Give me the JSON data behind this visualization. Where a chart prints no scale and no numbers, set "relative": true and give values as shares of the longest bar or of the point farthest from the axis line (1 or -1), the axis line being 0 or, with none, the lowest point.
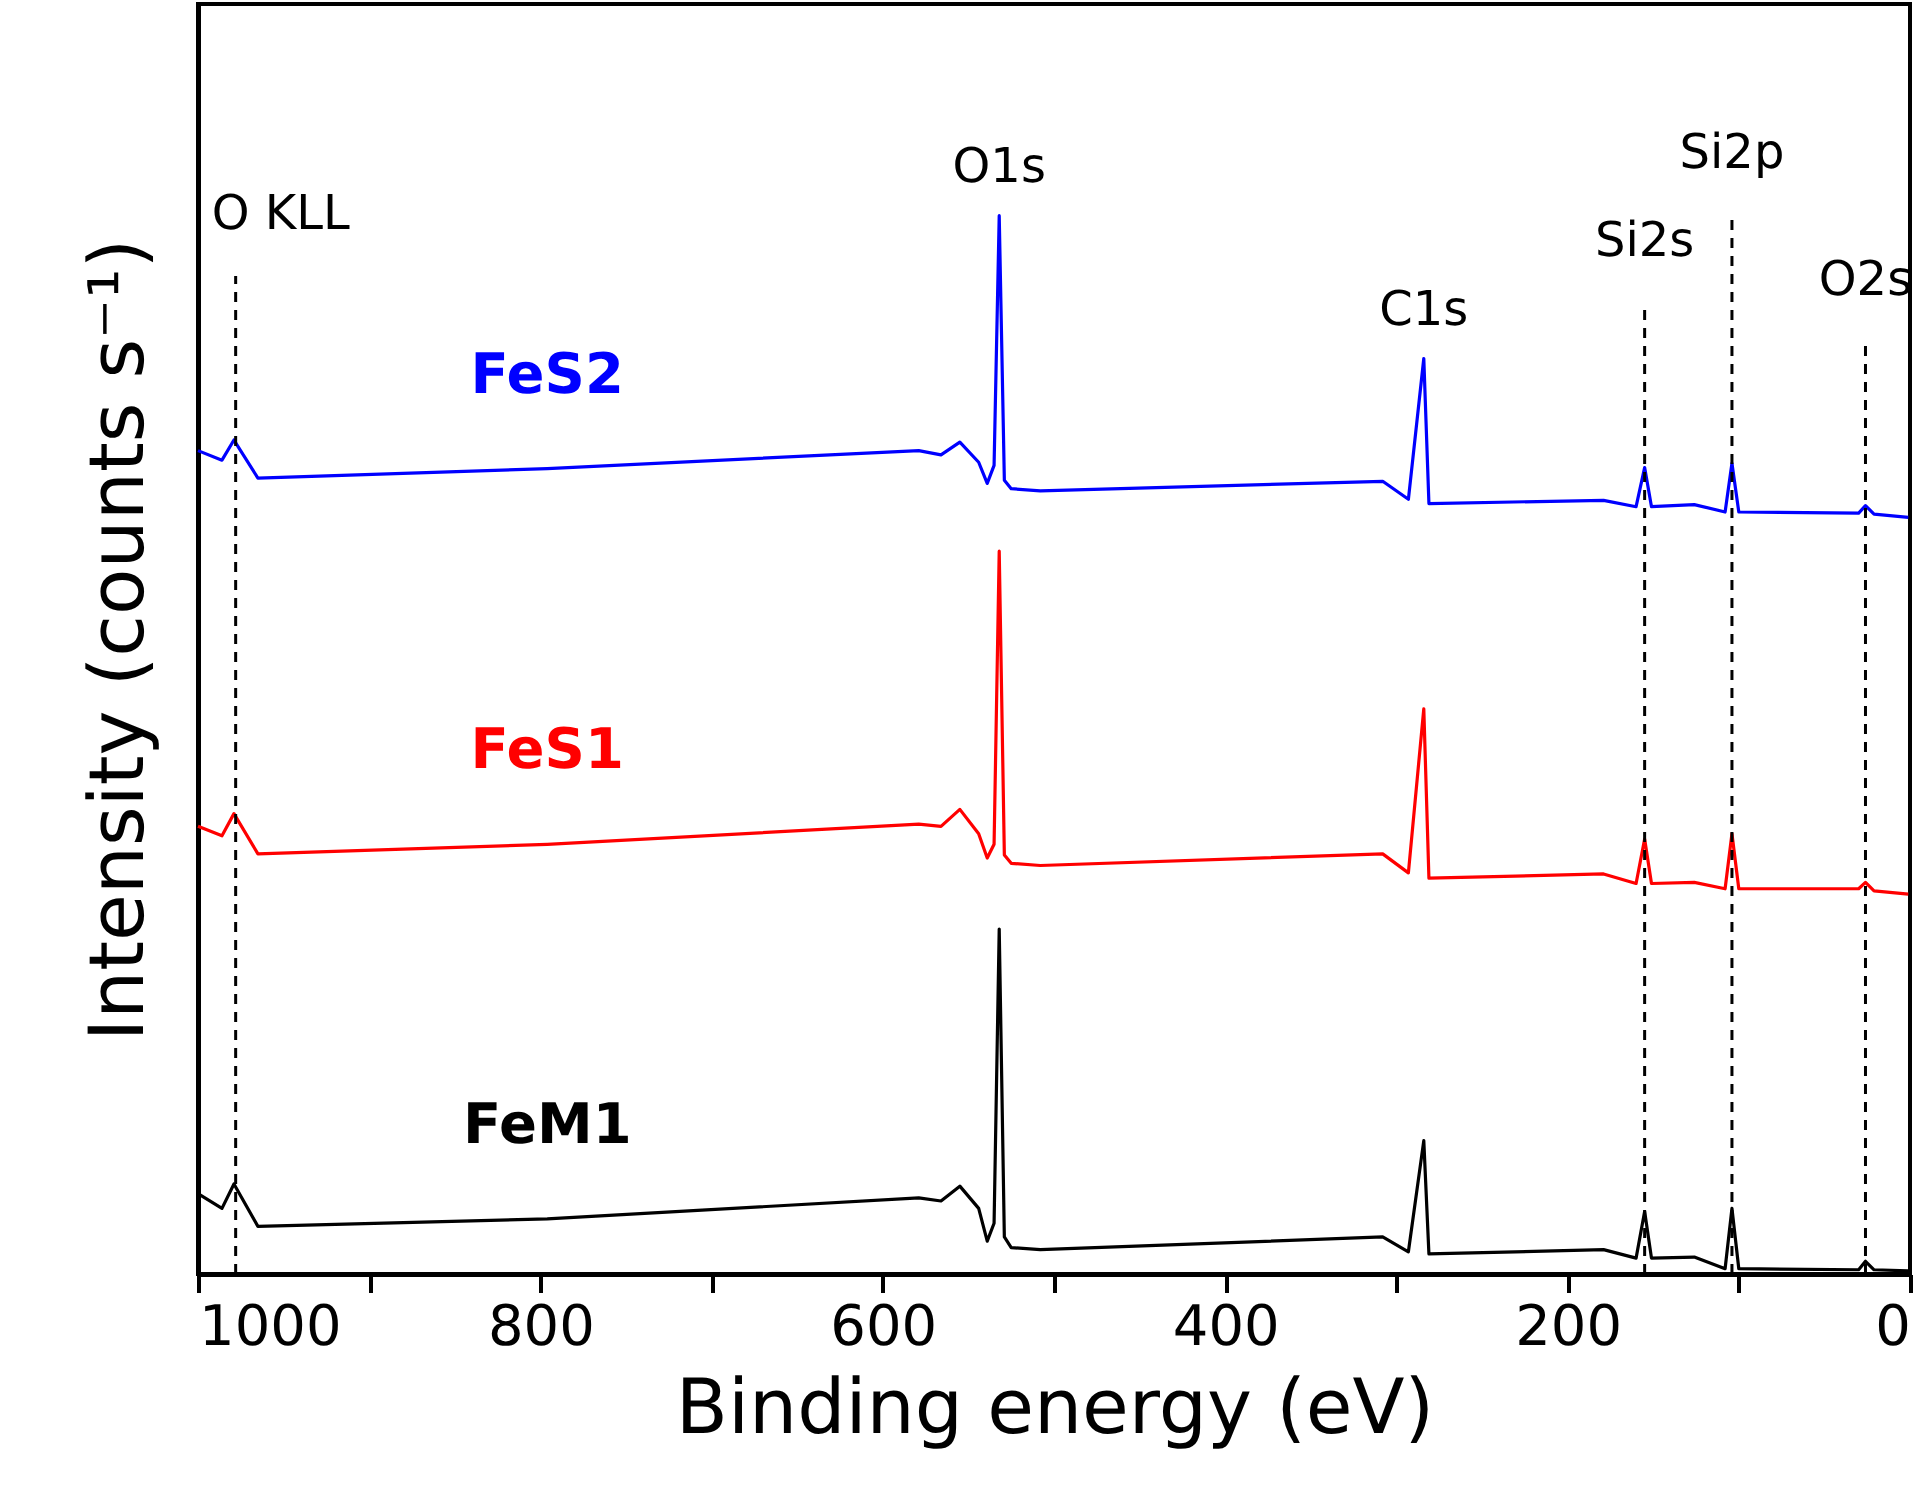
{
  "chart_data": {
    "type": "line",
    "relative": true,
    "xlabel": "Binding energy (eV)",
    "ylabel": "Intensity (counts s⁻¹)",
    "xlim": [
      1000,
      0
    ],
    "xticks": [
      1000,
      {
        "value": 900,
        "label": null
      },
      800,
      {
        "value": 700,
        "label": null
      },
      600,
      {
        "value": 500,
        "label": null
      },
      400,
      {
        "value": 300,
        "label": null
      },
      200,
      {
        "value": 100,
        "label": null
      },
      0
    ],
    "x": [
      1000,
      986,
      979,
      965,
      796,
      579,
      566,
      555,
      544,
      539,
      535,
      532,
      529,
      525,
      508,
      308,
      293,
      284,
      281,
      179,
      160,
      155,
      151,
      126,
      108,
      104,
      100,
      30,
      26,
      21,
      1
    ],
    "series": [
      {
        "name": "FeS2",
        "color": "#0000ff",
        "values": [
          0.778,
          0.769,
          0.788,
          0.752,
          0.761,
          0.778,
          0.774,
          0.786,
          0.767,
          0.747,
          0.764,
          1.0,
          0.75,
          0.742,
          0.74,
          0.749,
          0.732,
          0.865,
          0.728,
          0.731,
          0.725,
          0.762,
          0.725,
          0.727,
          0.72,
          0.766,
          0.72,
          0.719,
          0.726,
          0.718,
          0.715
        ]
      },
      {
        "name": "FeS1",
        "color": "#ff0000",
        "values": [
          0.423,
          0.414,
          0.435,
          0.397,
          0.406,
          0.425,
          0.423,
          0.439,
          0.416,
          0.393,
          0.406,
          0.683,
          0.396,
          0.388,
          0.386,
          0.397,
          0.379,
          0.534,
          0.374,
          0.378,
          0.369,
          0.411,
          0.369,
          0.37,
          0.364,
          0.416,
          0.364,
          0.364,
          0.37,
          0.362,
          0.359
        ]
      },
      {
        "name": "FeM1",
        "color": "#000000",
        "values": [
          0.076,
          0.062,
          0.085,
          0.045,
          0.052,
          0.072,
          0.069,
          0.083,
          0.062,
          0.031,
          0.048,
          0.326,
          0.035,
          0.025,
          0.023,
          0.035,
          0.021,
          0.126,
          0.019,
          0.023,
          0.015,
          0.059,
          0.015,
          0.016,
          0.005,
          0.062,
          0.005,
          0.004,
          0.012,
          0.004,
          0.003
        ]
      }
    ],
    "annotations": [
      {
        "text": "O1s",
        "x": 532,
        "y": 1.0
      },
      {
        "text": "C1s",
        "x": 284,
        "y": 0.865
      }
    ],
    "ref_lines": [
      {
        "axis": "x",
        "value": 978,
        "label": "O KLL",
        "line_style": "dashed"
      },
      {
        "axis": "x",
        "value": 155,
        "label": "Si2s",
        "line_style": "dashed"
      },
      {
        "axis": "x",
        "value": 104,
        "label": "Si2p",
        "line_style": "dashed"
      },
      {
        "axis": "x",
        "value": 26,
        "label": "O2s",
        "line_style": "dashed"
      }
    ]
  }
}
